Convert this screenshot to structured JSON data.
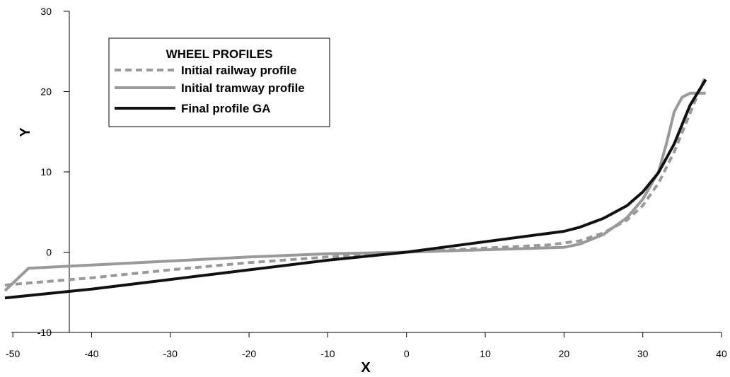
{
  "chart_data": {
    "type": "line",
    "title": "",
    "xlabel": "X",
    "ylabel": "Y",
    "xlim": [
      -51,
      40
    ],
    "ylim": [
      -10,
      30
    ],
    "x_ticks": [
      -50,
      -40,
      -30,
      -20,
      -10,
      0,
      10,
      20,
      30,
      40
    ],
    "y_ticks": [
      -10,
      0,
      10,
      20,
      30
    ],
    "x_tick_labels": [
      "-50",
      "-40",
      "-30",
      "-20",
      "-10",
      "0",
      "10",
      "20",
      "30",
      "40"
    ],
    "y_tick_labels": [
      "-10",
      "0",
      "10",
      "20",
      "30"
    ],
    "grid": false,
    "legend": {
      "title": "WHEEL PROFILES",
      "placement": "top-left"
    },
    "series": [
      {
        "name": "Initial railway profile",
        "color": "#999999",
        "dash": "dashed",
        "x": [
          -51,
          -40,
          -30,
          -20,
          -10,
          0,
          10,
          18,
          22,
          25,
          28,
          30,
          32,
          34,
          36,
          38
        ],
        "y": [
          -4.1,
          -3.2,
          -2.2,
          -1.3,
          -0.6,
          0,
          0.5,
          0.9,
          1.4,
          2.4,
          4.0,
          5.8,
          8.6,
          12.5,
          17.3,
          22.0
        ]
      },
      {
        "name": "Initial tramway profile",
        "color": "#999999",
        "dash": "solid",
        "x": [
          -51,
          -48,
          -40,
          -30,
          -20,
          -10,
          0,
          10,
          20,
          22,
          25,
          28,
          30,
          32,
          33,
          34,
          35,
          36,
          38
        ],
        "y": [
          -4.8,
          -2.0,
          -1.6,
          -1.1,
          -0.6,
          -0.2,
          0,
          0.3,
          0.6,
          1.0,
          2.2,
          4.3,
          6.6,
          10.0,
          13.5,
          17.5,
          19.3,
          19.8,
          19.8
        ]
      },
      {
        "name": "Final profile GA",
        "color": "#111111",
        "dash": "solid",
        "x": [
          -51,
          -40,
          -30,
          -20,
          -10,
          0,
          10,
          20,
          22,
          25,
          28,
          30,
          32,
          34,
          36,
          38
        ],
        "y": [
          -5.7,
          -4.6,
          -3.4,
          -2.2,
          -1.0,
          0,
          1.3,
          2.6,
          3.1,
          4.2,
          5.8,
          7.5,
          9.9,
          13.5,
          18.3,
          21.5
        ]
      }
    ]
  }
}
